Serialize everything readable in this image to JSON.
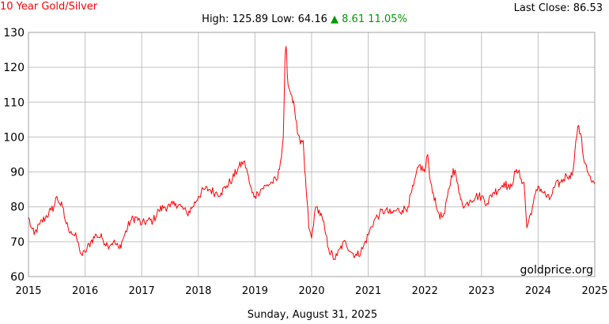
{
  "header": {
    "title": "10 Year Gold/Silver",
    "last_close_label": "Last Close:",
    "last_close_value": "86.53",
    "high_label": "High:",
    "high_value": "125.89",
    "low_label": "Low:",
    "low_value": "64.16",
    "change_arrow": "▲",
    "change_value": "8.61",
    "change_percent": "11.05%"
  },
  "footer": {
    "date": "Sunday, August 31, 2025",
    "watermark": "goldprice.org"
  },
  "colors": {
    "line": "#ff0000",
    "title": "#ff0000",
    "change_up": "#009900",
    "grid": "#c0c0c0"
  },
  "chart_data": {
    "type": "line",
    "title": "10 Year Gold/Silver",
    "xlabel": "",
    "ylabel": "",
    "xlim": [
      2015.0,
      2025.0
    ],
    "ylim": [
      60,
      130
    ],
    "x_ticks": [
      2015,
      2016,
      2017,
      2018,
      2019,
      2020,
      2021,
      2022,
      2023,
      2024,
      2025
    ],
    "y_ticks": [
      60,
      70,
      80,
      90,
      100,
      110,
      120,
      130
    ],
    "grid": true,
    "legend": "none",
    "series": [
      {
        "x": [
          2015.0,
          2015.05,
          2015.1,
          2015.2,
          2015.3,
          2015.4,
          2015.45,
          2015.5,
          2015.55,
          2015.6,
          2015.65,
          2015.7,
          2015.75,
          2015.8,
          2015.85,
          2015.9,
          2015.95,
          2016.0,
          2016.1,
          2016.2,
          2016.3,
          2016.4,
          2016.5,
          2016.6,
          2016.7,
          2016.8,
          2016.9,
          2017.0,
          2017.1,
          2017.2,
          2017.3,
          2017.4,
          2017.5,
          2017.6,
          2017.7,
          2017.8,
          2017.9,
          2018.0,
          2018.1,
          2018.2,
          2018.3,
          2018.4,
          2018.5,
          2018.6,
          2018.7,
          2018.8,
          2018.85,
          2018.9,
          2018.95,
          2019.0,
          2019.05,
          2019.1,
          2019.2,
          2019.3,
          2019.4,
          2019.45,
          2019.5,
          2019.53,
          2019.55,
          2019.57,
          2019.6,
          2019.65,
          2019.7,
          2019.75,
          2019.8,
          2019.85,
          2019.88,
          2019.9,
          2019.93,
          2019.95,
          2020.0,
          2020.05,
          2020.1,
          2020.2,
          2020.25,
          2020.3,
          2020.4,
          2020.45,
          2020.5,
          2020.6,
          2020.7,
          2020.8,
          2020.9,
          2021.0,
          2021.1,
          2021.2,
          2021.3,
          2021.4,
          2021.5,
          2021.6,
          2021.7,
          2021.8,
          2021.9,
          2022.0,
          2022.05,
          2022.1,
          2022.15,
          2022.2,
          2022.25,
          2022.3,
          2022.35,
          2022.4,
          2022.5,
          2022.55,
          2022.6,
          2022.65,
          2022.7,
          2022.8,
          2022.9,
          2023.0,
          2023.1,
          2023.2,
          2023.3,
          2023.4,
          2023.5,
          2023.6,
          2023.65,
          2023.7,
          2023.75,
          2023.8,
          2023.9,
          2024.0,
          2024.1,
          2024.2,
          2024.3,
          2024.4,
          2024.5,
          2024.55,
          2024.6,
          2024.65,
          2024.7,
          2024.75,
          2024.8,
          2024.85,
          2024.9,
          2024.95,
          2025.0
        ],
        "values": [
          77,
          74,
          72,
          75,
          77,
          79,
          80,
          83,
          81,
          80,
          76,
          74,
          73,
          72,
          71,
          68,
          66,
          67,
          70,
          72,
          71,
          69,
          70,
          68,
          72,
          76,
          77,
          75,
          76,
          76,
          79,
          80,
          80,
          81,
          80,
          78,
          80,
          83,
          85,
          85,
          84,
          84,
          86,
          88,
          91,
          93,
          91,
          87,
          84,
          83,
          84,
          85,
          86,
          87,
          88,
          93,
          100,
          122,
          126,
          118,
          114,
          112,
          108,
          101,
          98,
          99,
          90,
          86,
          80,
          74,
          71,
          78,
          80,
          76,
          72,
          68,
          65,
          66,
          68,
          70,
          67,
          66,
          68,
          72,
          76,
          78,
          79,
          78,
          79,
          79,
          80,
          86,
          92,
          90,
          95,
          87,
          84,
          80,
          78,
          77,
          78,
          83,
          91,
          89,
          84,
          82,
          80,
          82,
          83,
          83,
          81,
          84,
          85,
          87,
          85,
          90,
          90,
          88,
          87,
          74,
          80,
          86,
          84,
          82,
          86,
          87,
          89,
          89,
          89,
          96,
          103,
          101,
          94,
          92,
          89,
          87,
          86.53
        ]
      }
    ]
  }
}
